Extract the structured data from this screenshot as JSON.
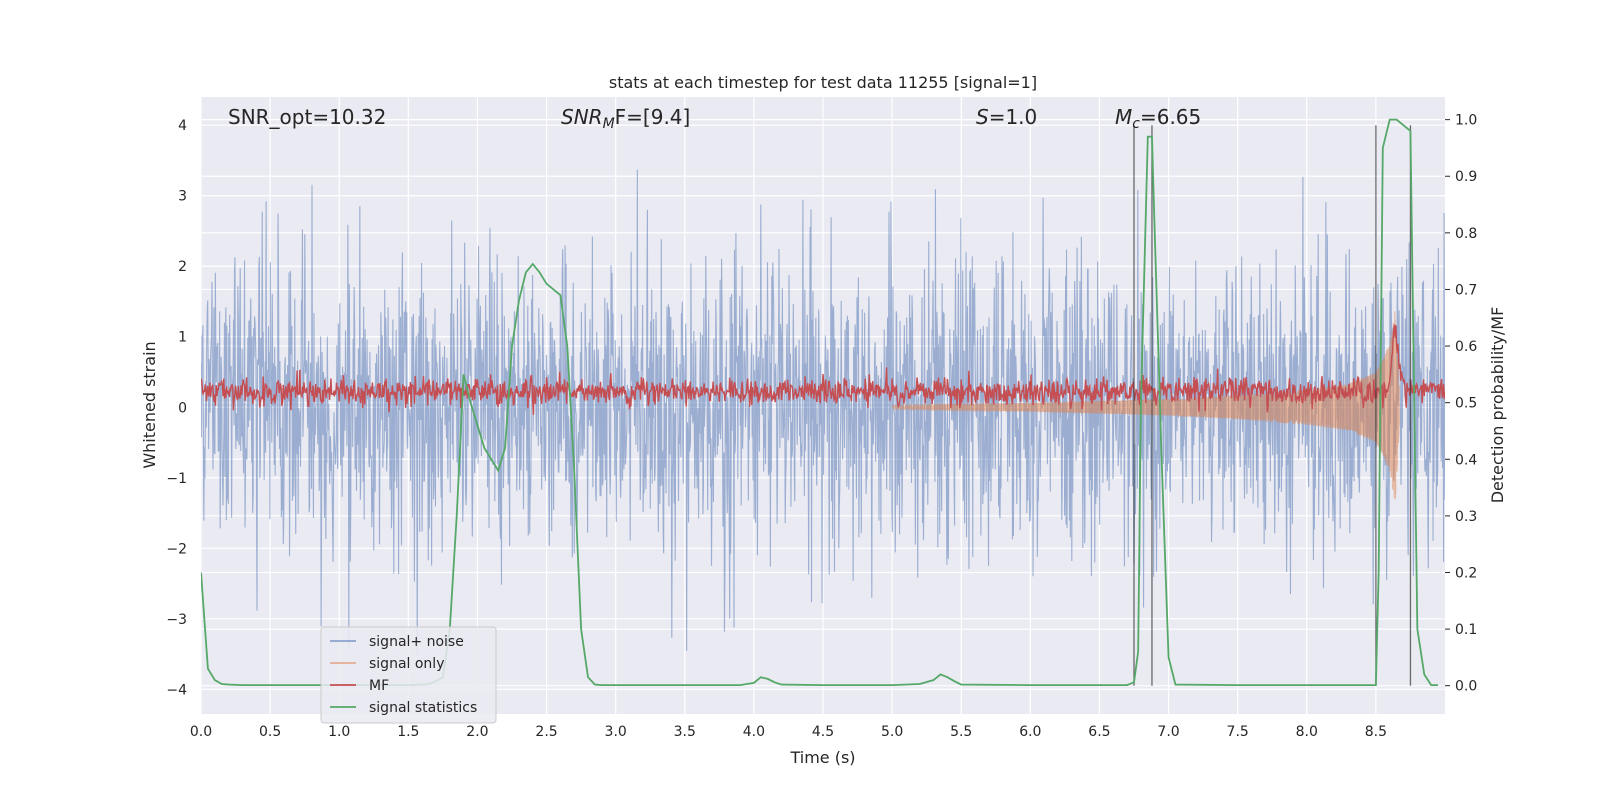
{
  "chart_data": {
    "type": "line",
    "title": "stats at each timestep for test data 11255 [signal=1]",
    "xlabel": "Time (s)",
    "ylabel_left": "Whitened strain",
    "ylabel_right": "Detection probability/MF",
    "xlim": [
      0.0,
      9.0
    ],
    "ylim_left": [
      -4.35,
      4.4
    ],
    "ylim_right": [
      -0.05,
      1.04
    ],
    "x_ticks": [
      "0.0",
      "0.5",
      "1.0",
      "1.5",
      "2.0",
      "2.5",
      "3.0",
      "3.5",
      "4.0",
      "4.5",
      "5.0",
      "5.5",
      "6.0",
      "6.5",
      "7.0",
      "7.5",
      "8.0",
      "8.5"
    ],
    "y_left_ticks": [
      "4",
      "3",
      "2",
      "1",
      "0",
      "−1",
      "−2",
      "−3",
      "−4"
    ],
    "y_right_ticks": [
      "1.0",
      "0.9",
      "0.8",
      "0.7",
      "0.6",
      "0.5",
      "0.4",
      "0.3",
      "0.2",
      "0.1",
      "0.0"
    ],
    "grid": true,
    "legend_position": "lower-left",
    "annotations": {
      "snr_opt": "SNR_opt=10.32",
      "snr_mf_main": "SNR",
      "snr_mf_sub": "M",
      "snr_mf_tail": "F=[9.4]",
      "s_main": "S",
      "s_tail": "=1.0",
      "mc_main": "M",
      "mc_sub": "c",
      "mc_tail": "=6.65"
    },
    "vertical_lines_x": [
      6.75,
      6.88,
      8.5,
      8.75
    ],
    "series": [
      {
        "name": "signal+ noise",
        "color": "#4c72b0",
        "axis": "left",
        "note_values": "dense noise band, mostly within ±1.6, spikes to ±3.8"
      },
      {
        "name": "signal only",
        "color": "#dd8452",
        "axis": "left",
        "chirp_envelope": {
          "x": [
            5.0,
            6.0,
            7.0,
            7.5,
            8.0,
            8.3,
            8.5,
            8.6,
            8.64,
            8.67
          ],
          "amp": [
            0.03,
            0.06,
            0.12,
            0.17,
            0.25,
            0.33,
            0.5,
            0.9,
            1.4,
            0.3
          ]
        }
      },
      {
        "name": "MF",
        "color": "#c44e52",
        "axis": "right",
        "baseline": 0.52,
        "spread": 0.02,
        "peak": {
          "x": 8.64,
          "value": 0.63
        }
      },
      {
        "name": "signal statistics",
        "color": "#55a868",
        "axis": "right",
        "x": [
          0.0,
          0.05,
          0.1,
          0.15,
          0.2,
          0.3,
          0.5,
          0.7,
          0.9,
          1.1,
          1.3,
          1.5,
          1.6,
          1.65,
          1.7,
          1.75,
          1.8,
          1.85,
          1.9,
          1.95,
          2.0,
          2.05,
          2.1,
          2.15,
          2.2,
          2.25,
          2.3,
          2.35,
          2.4,
          2.45,
          2.5,
          2.55,
          2.6,
          2.65,
          2.7,
          2.75,
          2.8,
          2.85,
          2.9,
          3.0,
          3.5,
          3.9,
          4.0,
          4.05,
          4.1,
          4.15,
          4.2,
          4.5,
          5.0,
          5.2,
          5.3,
          5.35,
          5.4,
          5.45,
          5.5,
          6.0,
          6.5,
          6.7,
          6.75,
          6.78,
          6.8,
          6.85,
          6.88,
          6.9,
          6.95,
          7.0,
          7.05,
          7.5,
          8.0,
          8.4,
          8.5,
          8.52,
          8.55,
          8.6,
          8.65,
          8.7,
          8.75,
          8.8,
          8.85,
          8.9,
          8.95
        ],
        "values": [
          0.2,
          0.03,
          0.01,
          0.003,
          0.002,
          0.001,
          0.001,
          0.001,
          0.001,
          0.001,
          0.001,
          0.001,
          0.002,
          0.003,
          0.008,
          0.015,
          0.1,
          0.3,
          0.55,
          0.5,
          0.46,
          0.42,
          0.4,
          0.38,
          0.42,
          0.6,
          0.68,
          0.73,
          0.745,
          0.73,
          0.71,
          0.7,
          0.69,
          0.6,
          0.38,
          0.1,
          0.015,
          0.002,
          0.001,
          0.001,
          0.001,
          0.001,
          0.005,
          0.015,
          0.012,
          0.006,
          0.002,
          0.001,
          0.001,
          0.003,
          0.01,
          0.02,
          0.015,
          0.008,
          0.002,
          0.001,
          0.001,
          0.001,
          0.006,
          0.06,
          0.5,
          0.97,
          0.97,
          0.8,
          0.4,
          0.05,
          0.002,
          0.001,
          0.001,
          0.001,
          0.001,
          0.2,
          0.95,
          1.0,
          1.0,
          0.99,
          0.98,
          0.1,
          0.02,
          0.001,
          0.001
        ]
      }
    ]
  }
}
